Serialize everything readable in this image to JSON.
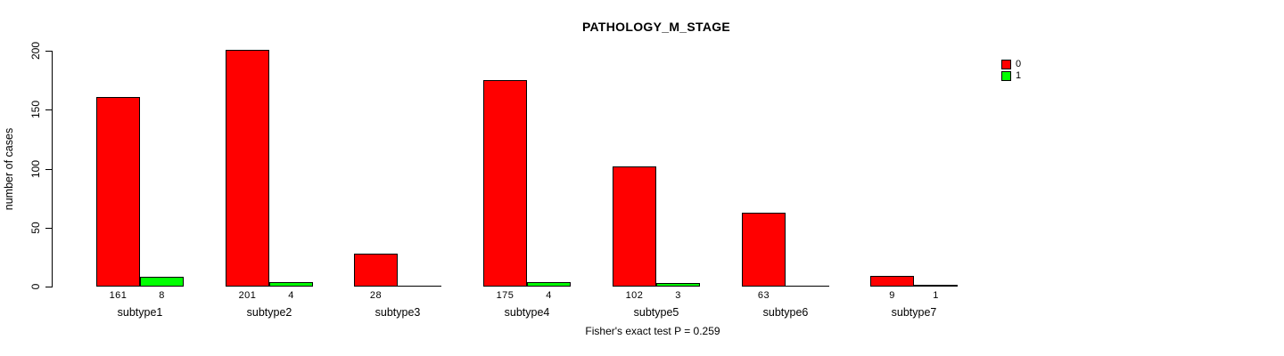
{
  "title": "PATHOLOGY_M_STAGE",
  "y_axis": {
    "label": "number of cases",
    "tick_labels": [
      "0",
      "50",
      "100",
      "150",
      "200"
    ]
  },
  "footer": "Fisher's exact test P = 0.259",
  "legend": {
    "items": [
      {
        "label": "0",
        "color": "#ff0000"
      },
      {
        "label": "1",
        "color": "#00ff00"
      }
    ]
  },
  "colors": {
    "series0": "#ff0000",
    "series1": "#00ff00",
    "axis": "#000000",
    "background": "#ffffff"
  },
  "chart_data": {
    "type": "bar",
    "title": "PATHOLOGY_M_STAGE",
    "categories": [
      "subtype1",
      "subtype2",
      "subtype3",
      "subtype4",
      "subtype5",
      "subtype6",
      "subtype7"
    ],
    "series": [
      {
        "name": "0",
        "color": "#ff0000",
        "values": [
          161,
          201,
          28,
          175,
          102,
          63,
          9
        ]
      },
      {
        "name": "1",
        "color": "#00ff00",
        "values": [
          8,
          4,
          0,
          4,
          3,
          0,
          1
        ]
      }
    ],
    "xlabel": "",
    "ylabel": "number of cases",
    "ylim": [
      0,
      200
    ],
    "yticks": [
      0,
      50,
      100,
      150,
      200
    ],
    "bar_value_labels_shown": true,
    "zero_value_labels_hidden": true,
    "annotation": "Fisher's exact test P = 0.259",
    "legend_position": "top-right",
    "grid": false
  }
}
